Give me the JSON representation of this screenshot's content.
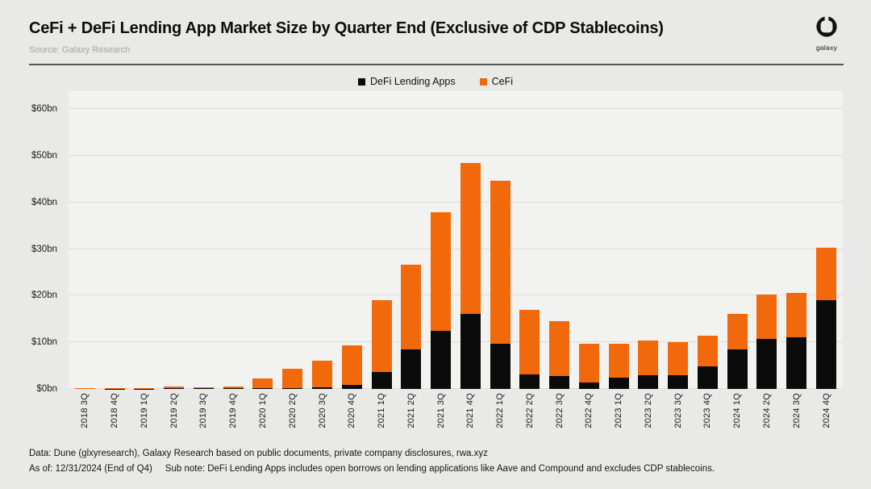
{
  "header": {
    "title": "CeFi + DeFi Lending App Market Size by Quarter End (Exclusive of CDP Stablecoins)",
    "source": "Source: Galaxy Research",
    "logo_text": "galaxy"
  },
  "footer": {
    "data_note": "Data: Dune (glxyresearch), Galaxy Research based on public documents, private company disclosures, rwa.xyz",
    "as_of": "As of: 12/31/2024 (End of Q4)",
    "sub_note": "Sub note: DeFi Lending Apps includes open borrows on lending applications like Aave and Compound and excludes CDP stablecoins."
  },
  "colors": {
    "defi": "#0b0b0b",
    "cefi": "#f2690c",
    "background": "#e9e9e7",
    "plot_background": "#f2f2f0",
    "gridline": "#dcdcda"
  },
  "chart_data": {
    "type": "bar",
    "stacked": true,
    "title": "CeFi + DeFi Lending App Market Size by Quarter End (Exclusive of CDP Stablecoins)",
    "xlabel": "",
    "ylabel": "",
    "ylim": [
      0,
      64
    ],
    "grid": "horizontal",
    "legend_position": "top-center",
    "units": "USD billions",
    "categories": [
      "2018 3Q",
      "2018 4Q",
      "2019 1Q",
      "2019 2Q",
      "2019 3Q",
      "2019 4Q",
      "2020 1Q",
      "2020 2Q",
      "2020 3Q",
      "2020 4Q",
      "2021 1Q",
      "2021 2Q",
      "2021 3Q",
      "2021 4Q",
      "2022 1Q",
      "2022 2Q",
      "2022 3Q",
      "2022 4Q",
      "2023 1Q",
      "2023 2Q",
      "2023 3Q",
      "2023 4Q",
      "2024 1Q",
      "2024 2Q",
      "2024 3Q",
      "2024 4Q"
    ],
    "series": [
      {
        "name": "DeFi Lending Apps",
        "color": "#0b0b0b",
        "values": [
          0.0,
          0.05,
          0.05,
          0.1,
          0.1,
          0.1,
          0.1,
          0.2,
          0.3,
          0.8,
          3.7,
          8.5,
          12.5,
          16.0,
          9.6,
          3.2,
          2.8,
          1.4,
          2.5,
          3.0,
          2.9,
          4.9,
          8.5,
          10.8,
          11.0,
          19.1
        ]
      },
      {
        "name": "CeFi",
        "color": "#f2690c",
        "values": [
          0.1,
          0.1,
          0.2,
          0.35,
          0.3,
          0.4,
          2.2,
          4.2,
          5.7,
          8.6,
          15.3,
          18.1,
          25.4,
          32.4,
          35.0,
          13.8,
          11.7,
          8.2,
          7.2,
          7.3,
          7.1,
          6.6,
          7.5,
          9.5,
          9.6,
          11.2
        ]
      }
    ],
    "yticks": [
      {
        "value": 0,
        "label": "$0bn"
      },
      {
        "value": 10,
        "label": "$10bn"
      },
      {
        "value": 20,
        "label": "$20bn"
      },
      {
        "value": 30,
        "label": "$30bn"
      },
      {
        "value": 40,
        "label": "$40bn"
      },
      {
        "value": 50,
        "label": "$50bn"
      },
      {
        "value": 60,
        "label": "$60bn"
      }
    ]
  }
}
